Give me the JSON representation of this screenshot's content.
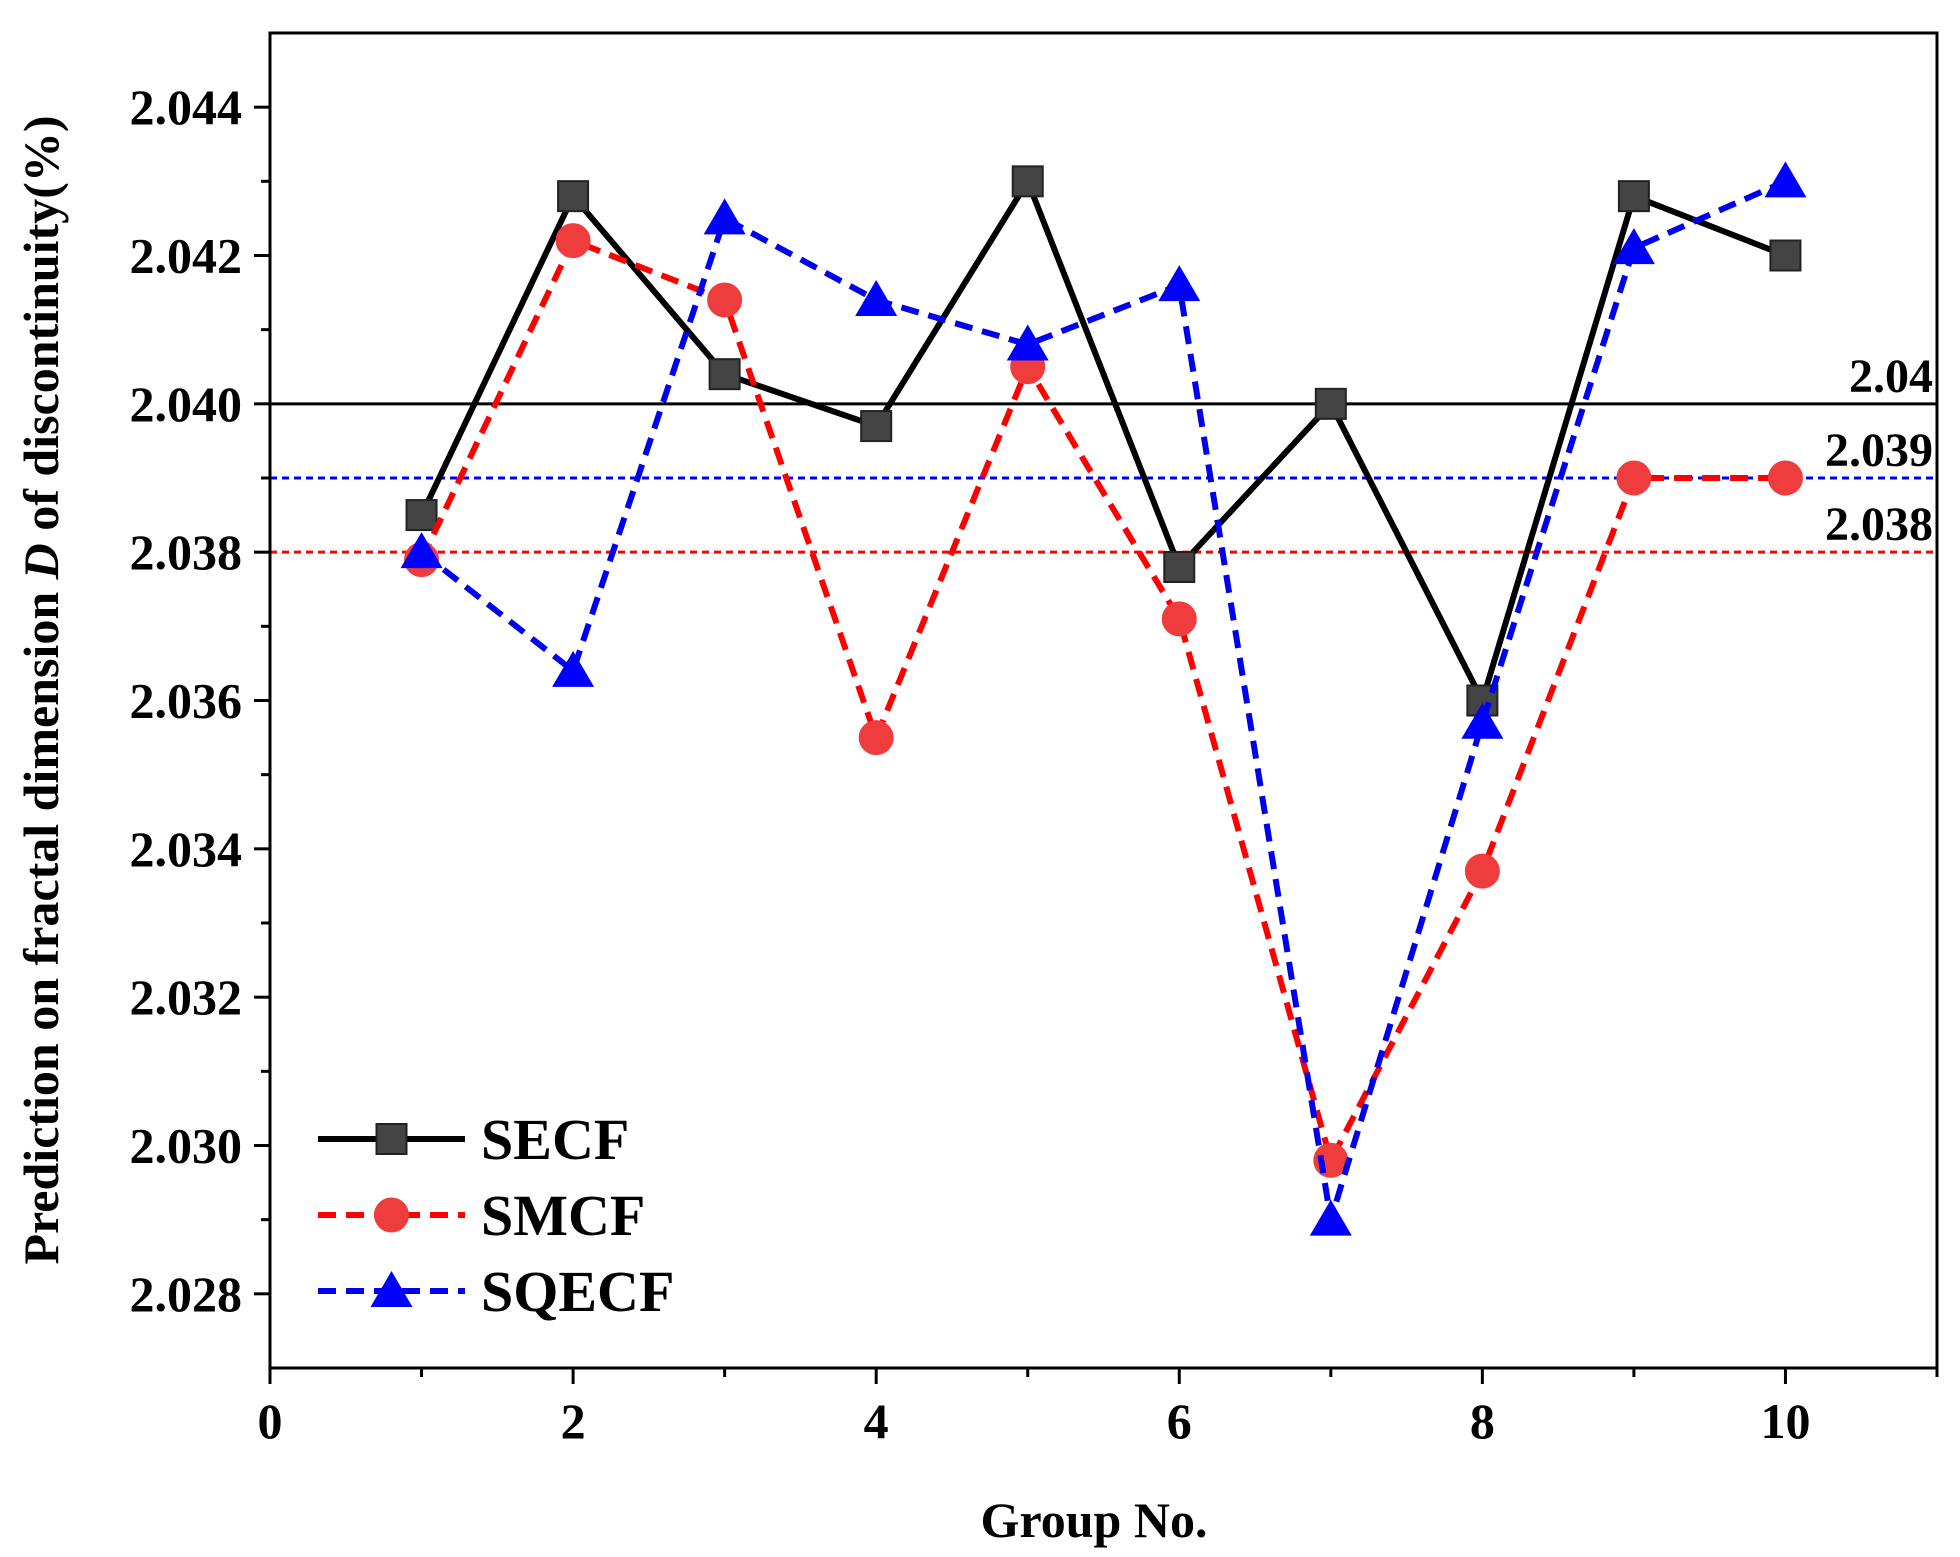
{
  "chart_data": {
    "type": "line",
    "title": "",
    "xlabel": "Group No.",
    "ylabel_parts": [
      "Prediction on fractal dimension ",
      "D",
      " of discontinuity(%)"
    ],
    "xlim": [
      0,
      11
    ],
    "ylim": [
      2.027,
      2.045
    ],
    "xticks": [
      0,
      2,
      4,
      6,
      8,
      10
    ],
    "xtick_labels": [
      "0",
      "2",
      "4",
      "6",
      "8",
      "10"
    ],
    "yticks": [
      2.028,
      2.03,
      2.032,
      2.034,
      2.036,
      2.038,
      2.04,
      2.042,
      2.044
    ],
    "ytick_labels": [
      "2.028",
      "2.030",
      "2.032",
      "2.034",
      "2.036",
      "2.038",
      "2.040",
      "2.042",
      "2.044"
    ],
    "x": [
      1,
      2,
      3,
      4,
      5,
      6,
      7,
      8,
      9,
      10
    ],
    "series": [
      {
        "name": "SECF",
        "color": "#000000",
        "marker_color": "#444444",
        "marker": "square",
        "line": "solid",
        "values": [
          2.0385,
          2.0428,
          2.0404,
          2.0397,
          2.043,
          2.0378,
          2.04,
          2.036,
          2.0428,
          2.042
        ]
      },
      {
        "name": "SMCF",
        "color": "#ff0000",
        "marker_color": "#ef3d3d",
        "marker": "circle",
        "line": "dashed",
        "values": [
          2.0379,
          2.0422,
          2.0414,
          2.0355,
          2.0405,
          2.0371,
          2.0298,
          2.0337,
          2.039,
          2.039
        ]
      },
      {
        "name": "SQECF",
        "color": "#0000ee",
        "marker_color": "#0000ff",
        "marker": "triangle",
        "line": "dashed",
        "values": [
          2.038,
          2.0364,
          2.0425,
          2.0414,
          2.0408,
          2.0416,
          2.029,
          2.0357,
          2.0421,
          2.043
        ]
      }
    ],
    "reference_lines": [
      {
        "value": 2.04,
        "label": "2.04",
        "color": "#000000",
        "style": "solid"
      },
      {
        "value": 2.039,
        "label": "2.039",
        "color": "#0000ff",
        "style": "dotted"
      },
      {
        "value": 2.038,
        "label": "2.038",
        "color": "#ff0000",
        "style": "dotted"
      }
    ],
    "legend_placement": "bottom-left",
    "grid": false
  }
}
